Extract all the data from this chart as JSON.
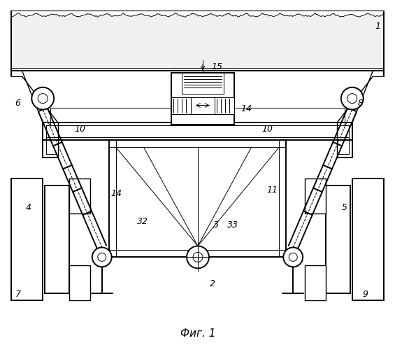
{
  "bg_color": "#ffffff",
  "caption": "Фиг. 1",
  "body_hatch_color": "#cccccc",
  "line_color": "#000000"
}
